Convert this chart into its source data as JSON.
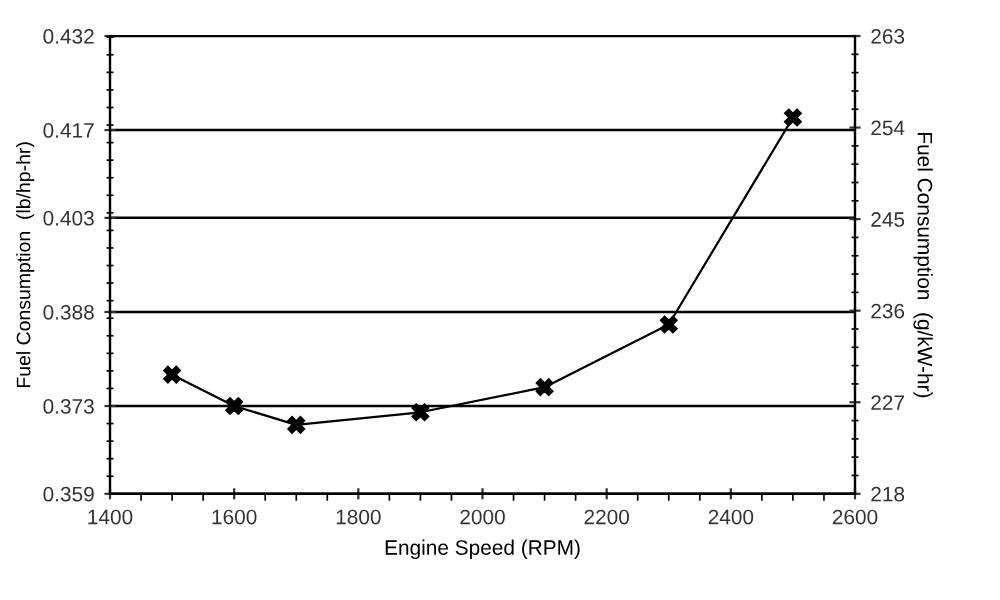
{
  "chart_data": {
    "type": "line",
    "xlabel": "Engine Speed (RPM)",
    "ylabel": "Fuel Consumption  (lb/hp-hr)",
    "y2label": "Fuel Consumption  (g/kW-hr)",
    "x": [
      1500,
      1600,
      1700,
      1900,
      2100,
      2300,
      2500
    ],
    "series": [
      {
        "color": "#000000",
        "values": [
          0.378,
          0.373,
          0.37,
          0.372,
          0.376,
          0.386,
          0.419
        ]
      }
    ],
    "xlim": [
      1400,
      2600
    ],
    "xticks": [
      1400,
      1600,
      1800,
      2000,
      2200,
      2400,
      2600
    ],
    "ylim": [
      0.359,
      0.432
    ],
    "yticks": [
      0.359,
      0.373,
      0.388,
      0.403,
      0.417,
      0.432
    ],
    "y2lim": [
      218,
      263
    ],
    "y2ticks": [
      218,
      227,
      236,
      245,
      254,
      263
    ],
    "grid": "y",
    "marker": "cross",
    "line_style": "solid",
    "legend": false
  }
}
